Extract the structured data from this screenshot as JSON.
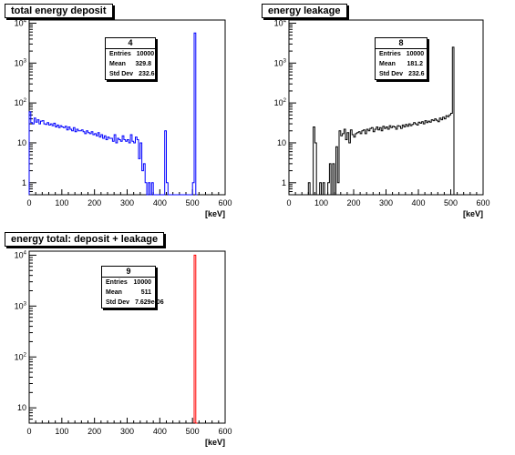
{
  "chart_data": [
    {
      "type": "histogram",
      "title": "total energy deposit",
      "xlabel": "[keV]",
      "ylabel": "",
      "xlim": [
        0,
        600
      ],
      "ylim": [
        0.5,
        12000
      ],
      "yscale": "log",
      "x_ticks": [
        "0",
        "100",
        "200",
        "300",
        "400",
        "500",
        "600"
      ],
      "y_ticks": [
        "1",
        "10",
        "10^2",
        "10^3",
        "10^4"
      ],
      "line_color": "#0000ff",
      "bin_width": 5,
      "bins": [
        [
          0,
          60
        ],
        [
          5,
          32
        ],
        [
          10,
          30
        ],
        [
          15,
          42
        ],
        [
          20,
          33
        ],
        [
          25,
          38
        ],
        [
          30,
          30
        ],
        [
          35,
          35
        ],
        [
          40,
          36
        ],
        [
          45,
          30
        ],
        [
          50,
          29
        ],
        [
          55,
          32
        ],
        [
          60,
          28
        ],
        [
          65,
          30
        ],
        [
          70,
          27
        ],
        [
          75,
          31
        ],
        [
          80,
          25
        ],
        [
          85,
          28
        ],
        [
          90,
          24
        ],
        [
          95,
          27
        ],
        [
          100,
          25
        ],
        [
          105,
          24
        ],
        [
          110,
          26
        ],
        [
          115,
          21
        ],
        [
          120,
          25
        ],
        [
          125,
          22
        ],
        [
          130,
          20
        ],
        [
          135,
          24
        ],
        [
          140,
          19
        ],
        [
          145,
          22
        ],
        [
          150,
          20
        ],
        [
          155,
          20
        ],
        [
          160,
          21
        ],
        [
          165,
          19
        ],
        [
          170,
          17
        ],
        [
          175,
          20
        ],
        [
          180,
          18
        ],
        [
          185,
          17
        ],
        [
          190,
          19
        ],
        [
          195,
          16
        ],
        [
          200,
          17
        ],
        [
          205,
          15
        ],
        [
          210,
          18
        ],
        [
          215,
          14
        ],
        [
          220,
          16
        ],
        [
          225,
          13
        ],
        [
          230,
          15
        ],
        [
          235,
          12
        ],
        [
          240,
          14
        ],
        [
          245,
          13
        ],
        [
          250,
          13
        ],
        [
          255,
          11
        ],
        [
          260,
          16
        ],
        [
          265,
          10
        ],
        [
          270,
          13
        ],
        [
          275,
          12
        ],
        [
          280,
          11
        ],
        [
          285,
          15
        ],
        [
          290,
          12
        ],
        [
          295,
          11
        ],
        [
          300,
          12
        ],
        [
          305,
          10
        ],
        [
          310,
          16
        ],
        [
          315,
          11
        ],
        [
          320,
          10
        ],
        [
          325,
          14
        ],
        [
          330,
          12
        ],
        [
          335,
          4
        ],
        [
          340,
          10
        ],
        [
          345,
          2
        ],
        [
          350,
          3
        ],
        [
          355,
          1
        ],
        [
          360,
          0.5
        ],
        [
          365,
          1
        ],
        [
          370,
          0.5
        ],
        [
          375,
          1
        ],
        [
          380,
          0.5
        ],
        [
          385,
          0.5
        ],
        [
          390,
          0.5
        ],
        [
          395,
          0.5
        ],
        [
          400,
          0.5
        ],
        [
          405,
          0.5
        ],
        [
          410,
          0.5
        ],
        [
          415,
          20
        ],
        [
          420,
          1
        ],
        [
          425,
          0.5
        ],
        [
          430,
          0.5
        ],
        [
          435,
          0.5
        ],
        [
          440,
          0.5
        ],
        [
          445,
          0.5
        ],
        [
          450,
          0.5
        ],
        [
          455,
          0.5
        ],
        [
          460,
          0.5
        ],
        [
          465,
          0.5
        ],
        [
          470,
          0.5
        ],
        [
          475,
          0.5
        ],
        [
          480,
          0.5
        ],
        [
          485,
          0.5
        ],
        [
          490,
          0.5
        ],
        [
          495,
          0.5
        ],
        [
          500,
          1
        ],
        [
          505,
          5700
        ],
        [
          510,
          0.5
        ]
      ],
      "stats": {
        "name": "4",
        "entries": "10000",
        "mean": "329.8",
        "std_dev": "232.6"
      }
    },
    {
      "type": "histogram",
      "title": "energy leakage",
      "xlabel": "[keV]",
      "ylabel": "",
      "xlim": [
        0,
        600
      ],
      "ylim": [
        0.5,
        12000
      ],
      "yscale": "log",
      "x_ticks": [
        "0",
        "100",
        "200",
        "300",
        "400",
        "500",
        "600"
      ],
      "y_ticks": [
        "1",
        "10",
        "10^2",
        "10^3",
        "10^4"
      ],
      "line_color": "#000000",
      "bin_width": 5,
      "bins": [
        [
          60,
          1
        ],
        [
          65,
          0.5
        ],
        [
          70,
          0.5
        ],
        [
          75,
          25
        ],
        [
          80,
          10
        ],
        [
          85,
          0.5
        ],
        [
          90,
          0.5
        ],
        [
          95,
          1
        ],
        [
          100,
          0.5
        ],
        [
          105,
          1
        ],
        [
          110,
          0.5
        ],
        [
          115,
          0.5
        ],
        [
          120,
          1
        ],
        [
          125,
          3
        ],
        [
          130,
          0.5
        ],
        [
          135,
          3
        ],
        [
          140,
          0.5
        ],
        [
          145,
          8
        ],
        [
          150,
          1
        ],
        [
          155,
          20
        ],
        [
          160,
          15
        ],
        [
          165,
          17
        ],
        [
          170,
          22
        ],
        [
          175,
          12
        ],
        [
          180,
          18
        ],
        [
          185,
          10
        ],
        [
          190,
          21
        ],
        [
          195,
          16
        ],
        [
          200,
          14
        ],
        [
          205,
          17
        ],
        [
          210,
          18
        ],
        [
          215,
          19
        ],
        [
          220,
          17
        ],
        [
          225,
          20
        ],
        [
          230,
          21
        ],
        [
          235,
          17
        ],
        [
          240,
          22
        ],
        [
          245,
          20
        ],
        [
          250,
          23
        ],
        [
          255,
          24
        ],
        [
          260,
          19
        ],
        [
          265,
          22
        ],
        [
          270,
          25
        ],
        [
          275,
          21
        ],
        [
          280,
          24
        ],
        [
          285,
          20
        ],
        [
          290,
          26
        ],
        [
          295,
          23
        ],
        [
          300,
          25
        ],
        [
          305,
          22
        ],
        [
          310,
          27
        ],
        [
          315,
          24
        ],
        [
          320,
          26
        ],
        [
          325,
          25
        ],
        [
          330,
          22
        ],
        [
          335,
          27
        ],
        [
          340,
          26
        ],
        [
          345,
          23
        ],
        [
          350,
          28
        ],
        [
          355,
          25
        ],
        [
          360,
          29
        ],
        [
          365,
          26
        ],
        [
          370,
          30
        ],
        [
          375,
          27
        ],
        [
          380,
          29
        ],
        [
          385,
          32
        ],
        [
          390,
          30
        ],
        [
          395,
          28
        ],
        [
          400,
          33
        ],
        [
          405,
          31
        ],
        [
          410,
          34
        ],
        [
          415,
          30
        ],
        [
          420,
          36
        ],
        [
          425,
          32
        ],
        [
          430,
          35
        ],
        [
          435,
          33
        ],
        [
          440,
          38
        ],
        [
          445,
          36
        ],
        [
          450,
          40
        ],
        [
          455,
          37
        ],
        [
          460,
          34
        ],
        [
          465,
          42
        ],
        [
          470,
          38
        ],
        [
          475,
          44
        ],
        [
          480,
          40
        ],
        [
          485,
          48
        ],
        [
          490,
          45
        ],
        [
          495,
          50
        ],
        [
          500,
          55
        ],
        [
          505,
          2500
        ],
        [
          510,
          0.5
        ]
      ],
      "stats": {
        "name": "8",
        "entries": "10000",
        "mean": "181.2",
        "std_dev": "232.6"
      }
    },
    {
      "type": "histogram",
      "title": "energy total: deposit + leakage",
      "xlabel": "[keV]",
      "ylabel": "",
      "xlim": [
        0,
        600
      ],
      "ylim": [
        5,
        12000
      ],
      "yscale": "log",
      "x_ticks": [
        "0",
        "100",
        "200",
        "300",
        "400",
        "500",
        "600"
      ],
      "y_ticks": [
        "10",
        "10^2",
        "10^3",
        "10^4"
      ],
      "line_color": "#ff0000",
      "bin_width": 5,
      "bins": [
        [
          505,
          10000
        ],
        [
          510,
          0.5
        ]
      ],
      "stats": {
        "name": "9",
        "entries": "10000",
        "mean": "511",
        "std_dev": "7.629e-06"
      }
    }
  ],
  "stats_labels": {
    "entries": "Entries",
    "mean": "Mean",
    "std_dev": "Std Dev"
  }
}
